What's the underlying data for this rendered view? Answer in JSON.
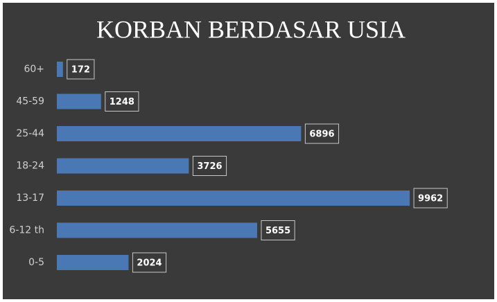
{
  "chart_data": {
    "type": "barh",
    "title": "KORBAN BERDASAR USIA",
    "categories": [
      "60+",
      "45-59",
      "25-44",
      "18-24",
      "13-17",
      "6-12 th",
      "0-5"
    ],
    "values": [
      172,
      1248,
      6896,
      3726,
      9962,
      5655,
      2024
    ],
    "color": "#4a78b5",
    "xlim": [
      0,
      10000
    ]
  }
}
